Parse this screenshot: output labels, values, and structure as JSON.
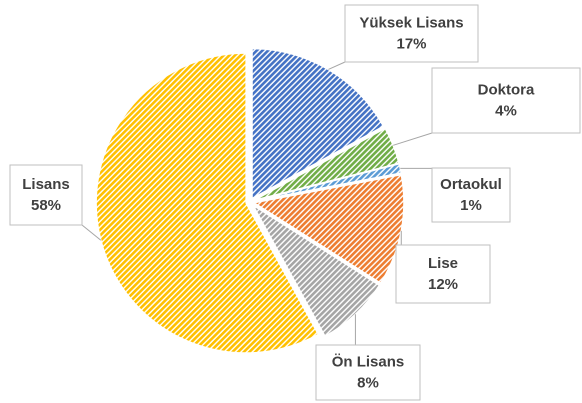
{
  "chart_data": {
    "type": "pie",
    "categories": [
      "Yüksek Lisans",
      "Doktora",
      "Ortaokul",
      "Lise",
      "Ön Lisans",
      "Lisans"
    ],
    "values": [
      17,
      4,
      1,
      12,
      8,
      58
    ],
    "value_labels": [
      "17%",
      "4%",
      "1%",
      "12%",
      "8%",
      "58%"
    ],
    "colors": [
      "#4472c4",
      "#70ad47",
      "#5b9bd5",
      "#ed7d31",
      "#a5a5a5",
      "#ffc000"
    ]
  }
}
